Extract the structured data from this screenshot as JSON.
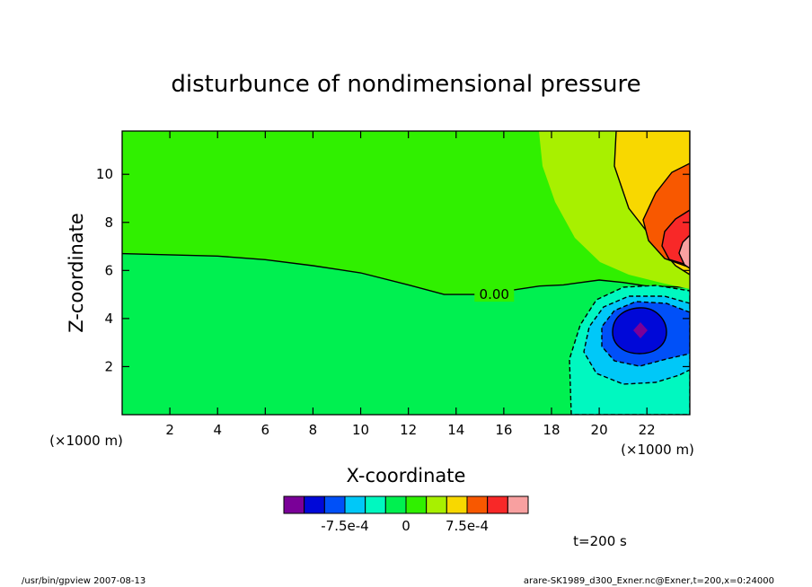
{
  "chart_data": {
    "type": "contour",
    "title": "disturbunce of nondimensional pressure",
    "xlabel": "X-coordinate",
    "ylabel": "Z-coordinate",
    "x_unit": "(×1000 m)",
    "y_unit": "(×1000 m)",
    "xlim": [
      0,
      23.8
    ],
    "ylim": [
      0,
      11.8
    ],
    "x_ticks": [
      2,
      4,
      6,
      8,
      10,
      12,
      14,
      16,
      18,
      20,
      22
    ],
    "y_ticks": [
      2,
      4,
      6,
      8,
      10
    ],
    "zero_contour_label": "0.00",
    "zero_line": [
      [
        0,
        6.7
      ],
      [
        2,
        6.65
      ],
      [
        4,
        6.6
      ],
      [
        6,
        6.45
      ],
      [
        8,
        6.2
      ],
      [
        10,
        5.9
      ],
      [
        12,
        5.4
      ],
      [
        13.5,
        5.0
      ],
      [
        15,
        5.0
      ],
      [
        16.5,
        5.2
      ],
      [
        17.5,
        5.35
      ],
      [
        18.5,
        5.4
      ],
      [
        20,
        5.6
      ],
      [
        21,
        5.5
      ],
      [
        22,
        5.35
      ],
      [
        23.8,
        5.3
      ]
    ],
    "colorbar": {
      "levels": [
        "-12.5e-4",
        "-10e-4",
        "-7.5e-4",
        "-5e-4",
        "-2.5e-4",
        "0",
        "2.5e-4",
        "5e-4",
        "7.5e-4",
        "10e-4",
        "12.5e-4"
      ],
      "tick_labels": [
        "-7.5e-4",
        "0",
        "7.5e-4"
      ],
      "colors": [
        "#7a0098",
        "#0008d8",
        "#0050f8",
        "#00c8f8",
        "#00f8c0",
        "#00f050",
        "#30f000",
        "#a8f000",
        "#f8d800",
        "#f85800",
        "#f82828",
        "#f8a0a0"
      ]
    },
    "extrema": {
      "minimum": {
        "x": 21.8,
        "z": 3.7
      },
      "maximum": {
        "x": 23.8,
        "z": 6.7
      }
    }
  },
  "annotations": {
    "time_label": "t=200 s",
    "footer_left": "/usr/bin/gpview   2007-08-13",
    "footer_right": "arare-SK1989_d300_Exner.nc@Exner,t=200,x=0:24000"
  }
}
